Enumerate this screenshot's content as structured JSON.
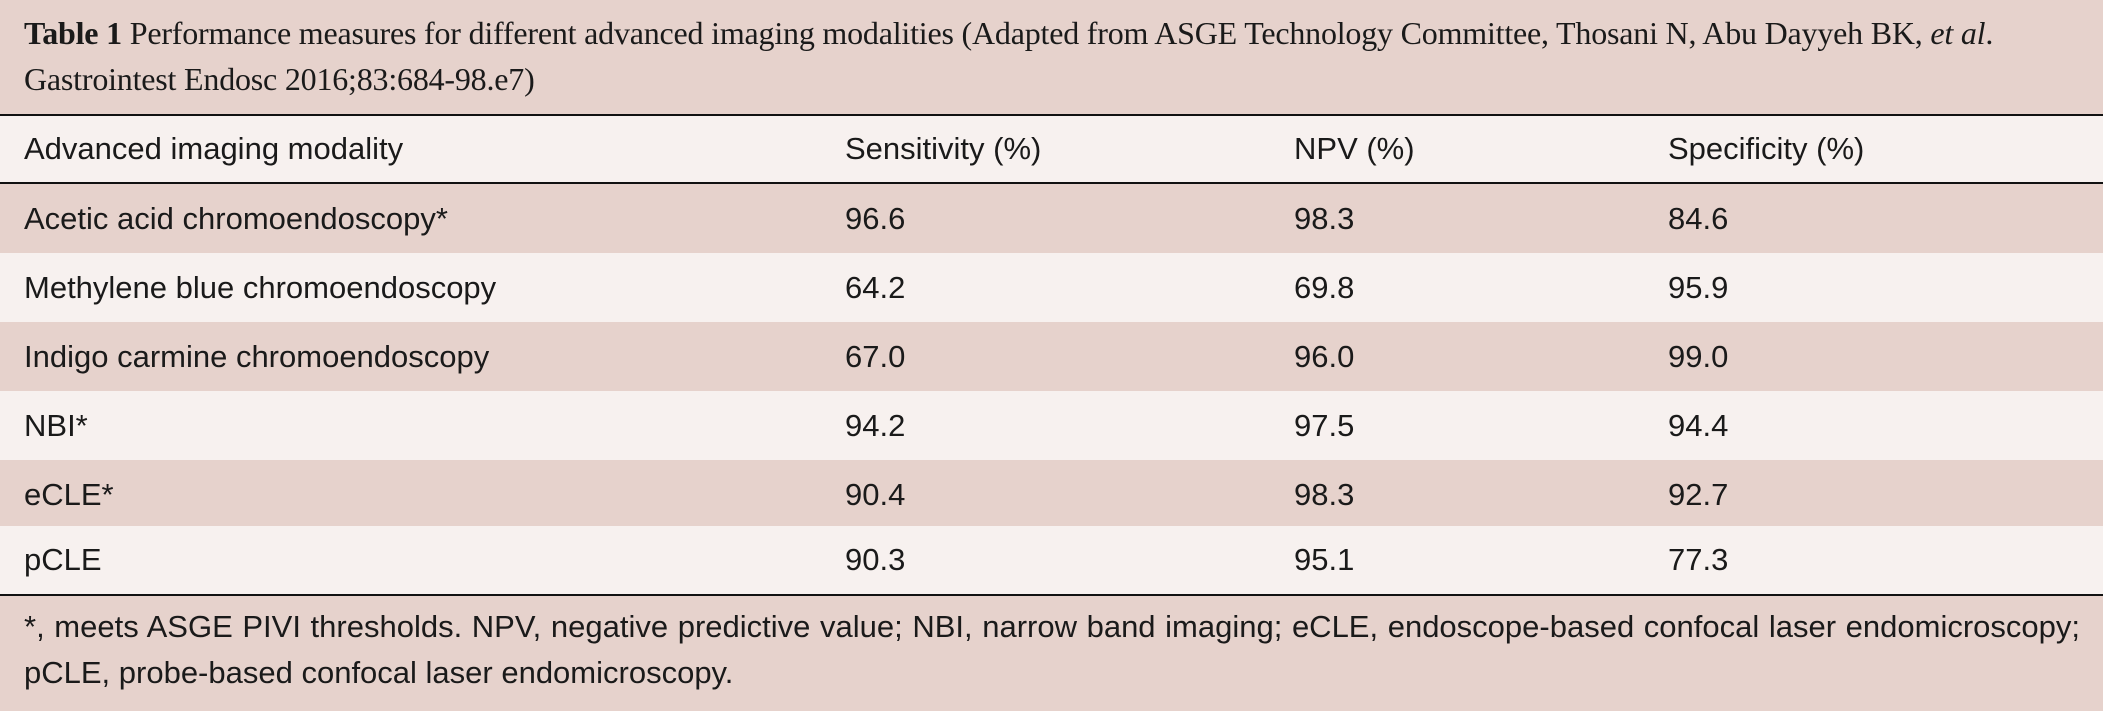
{
  "caption": {
    "label": "Table 1",
    "text_main": "Performance measures for different advanced imaging modalities (Adapted from ASGE Technology Committee, Thosani N, Abu Dayyeh BK, ",
    "text_italic": "et al",
    "text_end": ". Gastrointest Endosc 2016;83:684-98.e7)"
  },
  "table": {
    "headers": [
      "Advanced imaging modality",
      "Sensitivity (%)",
      "NPV (%)",
      "Specificity (%)"
    ],
    "rows": [
      [
        "Acetic acid chromoendoscopy*",
        "96.6",
        "98.3",
        "84.6"
      ],
      [
        "Methylene blue chromoendoscopy",
        "64.2",
        "69.8",
        "95.9"
      ],
      [
        "Indigo carmine chromoendoscopy",
        "67.0",
        "96.0",
        "99.0"
      ],
      [
        "NBI*",
        "94.2",
        "97.5",
        "94.4"
      ],
      [
        "eCLE*",
        "90.4",
        "98.3",
        "92.7"
      ],
      [
        "pCLE",
        "90.3",
        "95.1",
        "77.3"
      ]
    ]
  },
  "footnote": "*, meets ASGE PIVI thresholds. NPV, negative predictive value; NBI, narrow band imaging; eCLE, endoscope-based confocal laser endomicroscopy; pCLE, probe-based confocal laser endomicroscopy.",
  "colors": {
    "shaded_row": "#e6d2cc",
    "light_row": "#f7f1ef",
    "rule": "#111111"
  }
}
